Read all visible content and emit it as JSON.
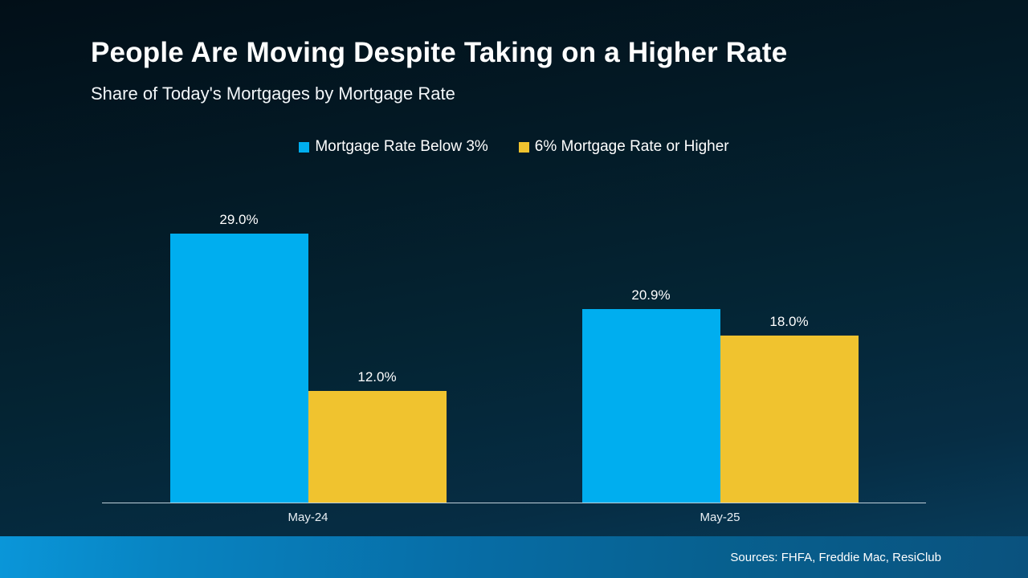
{
  "header": {
    "title": "People Are Moving Despite Taking on a Higher Rate",
    "subtitle": "Share of Today's Mortgages by Mortgage Rate"
  },
  "footer": {
    "sources": "Sources: FHFA, Freddie Mac, ResiClub"
  },
  "colors": {
    "series_blue": "#00AEEF",
    "series_yellow": "#F0C32F",
    "axis_line": "#BFCFD9",
    "background_top": "#020F18",
    "background_bottom": "#084061",
    "footer_blue": "#0884C2",
    "text": "#FFFFFF"
  },
  "chart_data": {
    "type": "bar",
    "title": "People Are Moving Despite Taking on a Higher Rate",
    "subtitle": "Share of Today's Mortgages by Mortgage Rate",
    "categories": [
      "May-24",
      "May-25"
    ],
    "series": [
      {
        "name": "Mortgage Rate Below 3%",
        "color": "#00AEEF",
        "values": [
          29.0,
          20.9
        ]
      },
      {
        "name": "6% Mortgage Rate or Higher",
        "color": "#F0C32F",
        "values": [
          12.0,
          18.0
        ]
      }
    ],
    "value_labels": [
      [
        "29.0%",
        "20.9%"
      ],
      [
        "12.0%",
        "18.0%"
      ]
    ],
    "value_suffix": "%",
    "xlabel": "",
    "ylabel": "",
    "ylim": [
      0,
      30
    ],
    "grid": false,
    "legend_position": "top-center"
  }
}
